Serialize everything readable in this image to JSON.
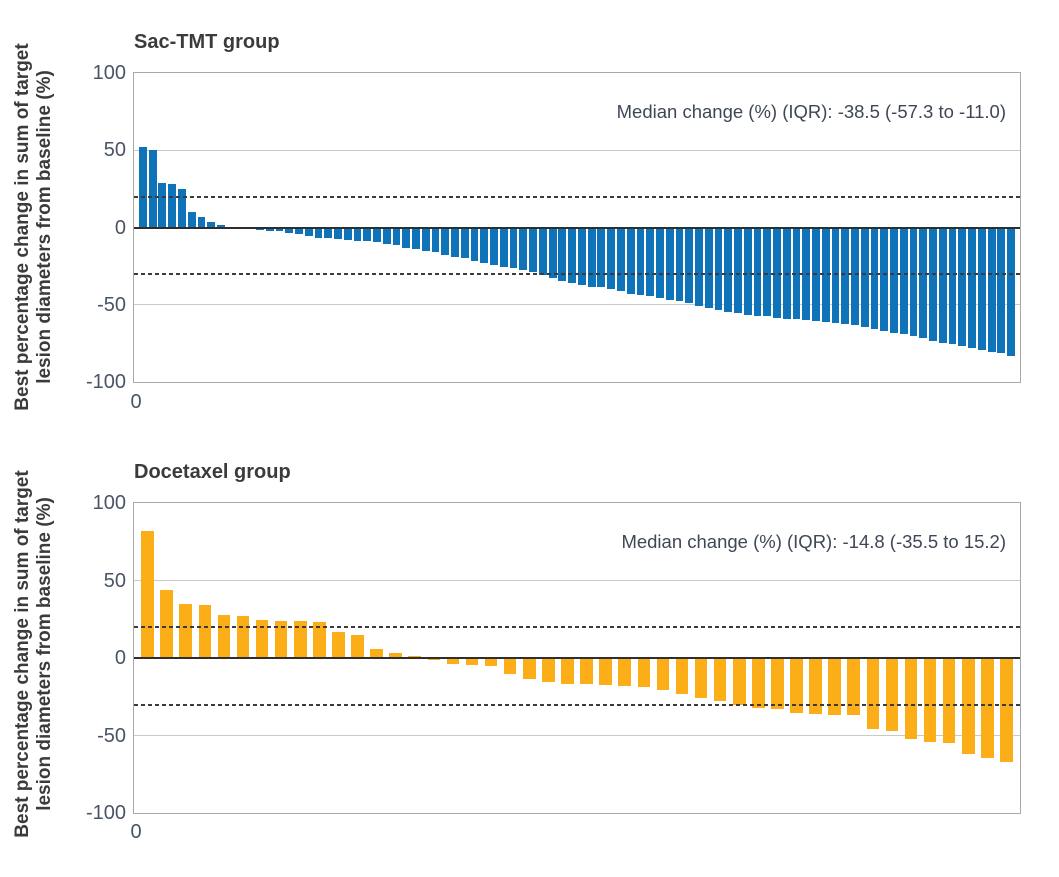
{
  "figure": {
    "background": "#FFFFFF"
  },
  "colors": {
    "sac_tmt_bar": "#0F73BA",
    "docetaxel_bar": "#FBAE17",
    "gridline": "#C9C9C9",
    "plot_border": "#A9A9A9",
    "zero_line": "#2E2E2E",
    "dashed_line": "#3B3B3B",
    "title_text": "#3B3B3B",
    "tick_text": "#4A5466",
    "annotation_text": "#3F4755"
  },
  "chart_data": [
    {
      "type": "bar",
      "variant": "waterfall",
      "title": "Sac-TMT group",
      "annotation": "Median change (%) (IQR): -38.5 (-57.3 to -11.0)",
      "ylabel_line1": "Best percentage change in sum of target",
      "ylabel_line2": "lesion diameters from baseline (%)",
      "x_tick_label": "0",
      "ylim": [
        -100,
        100
      ],
      "yticks": [
        100,
        50,
        0,
        -50,
        -100
      ],
      "grid_lines": [
        50,
        -50
      ],
      "reference_lines_dashed": [
        20,
        -30
      ],
      "legend": "none",
      "bar_color": "#0F73BA",
      "values": [
        52,
        50,
        28.5,
        28,
        25,
        10,
        6.5,
        3.5,
        1.5,
        0.5,
        -0.5,
        -1,
        -1.5,
        -2,
        -2.5,
        -3.5,
        -4.5,
        -5.5,
        -6.5,
        -7,
        -7.5,
        -8,
        -8.5,
        -9,
        -9.5,
        -10.5,
        -11.5,
        -13,
        -14,
        -15,
        -16,
        -17.5,
        -19,
        -20,
        -21.5,
        -23,
        -24,
        -25.5,
        -26,
        -27.5,
        -29,
        -31,
        -32.5,
        -34.5,
        -36,
        -37,
        -38.5,
        -38.5,
        -40,
        -41,
        -43,
        -44,
        -44.5,
        -45.5,
        -47,
        -47.5,
        -49,
        -50.5,
        -52,
        -53.5,
        -55,
        -55.5,
        -56.5,
        -57.5,
        -57.5,
        -58.5,
        -59,
        -59.5,
        -60,
        -60.5,
        -61,
        -62,
        -62.5,
        -63,
        -64.5,
        -65.5,
        -67,
        -68,
        -69,
        -70,
        -71.5,
        -73.5,
        -74.5,
        -75.5,
        -76.5,
        -78,
        -79.5,
        -80.5,
        -81.5,
        -83
      ]
    },
    {
      "type": "bar",
      "variant": "waterfall",
      "title": "Docetaxel group",
      "annotation": "Median change (%) (IQR): -14.8 (-35.5 to 15.2)",
      "ylabel_line1": "Best percentage change in sum of target",
      "ylabel_line2": "lesion diameters from baseline (%)",
      "x_tick_label": "0",
      "ylim": [
        -100,
        100
      ],
      "yticks": [
        100,
        50,
        0,
        -50,
        -100
      ],
      "grid_lines": [
        50,
        -50
      ],
      "reference_lines_dashed": [
        20,
        -30
      ],
      "legend": "none",
      "bar_color": "#FBAE17",
      "values": [
        82,
        44,
        35,
        34,
        28,
        27,
        24.5,
        24,
        24,
        23,
        17,
        15,
        6,
        3.5,
        1,
        -1.5,
        -4,
        -4.5,
        -5,
        -10.5,
        -13.5,
        -15.5,
        -16.5,
        -17,
        -17.5,
        -18,
        -19,
        -20.5,
        -23,
        -25.5,
        -27.5,
        -30.5,
        -32.5,
        -33,
        -35.5,
        -36,
        -36.5,
        -37,
        -46,
        -47,
        -52.5,
        -54,
        -55,
        -62,
        -64.5,
        -67
      ]
    }
  ]
}
